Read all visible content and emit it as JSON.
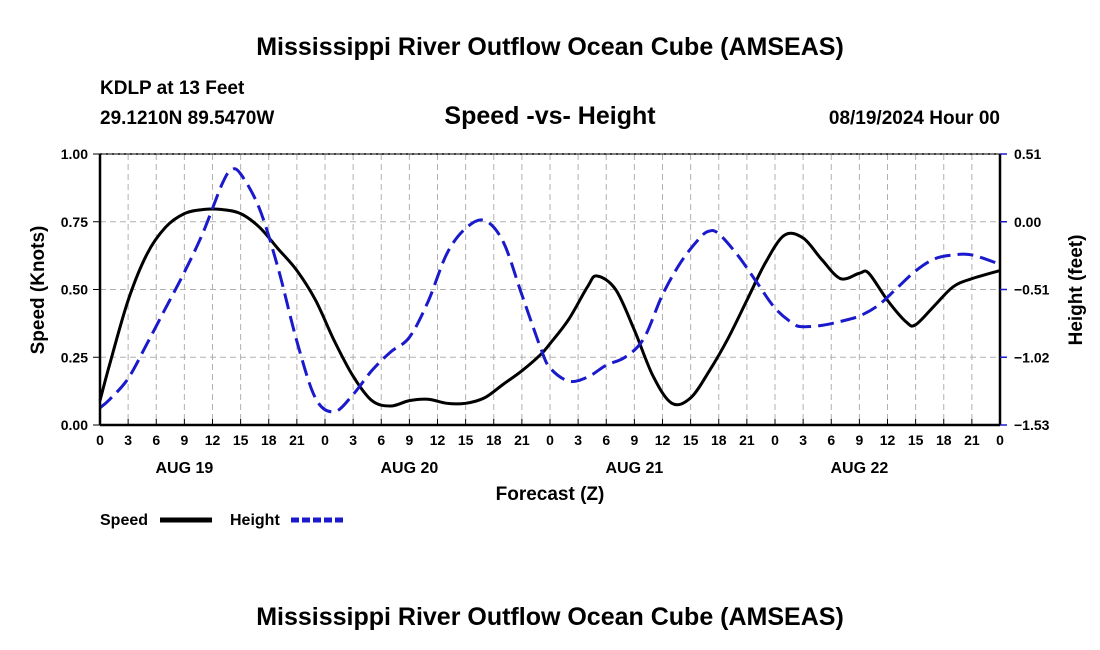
{
  "page": {
    "title": "Mississippi River Outflow Ocean Cube (AMSEAS)",
    "footer_title": "Mississippi River Outflow Ocean Cube (AMSEAS)"
  },
  "station": {
    "name": "KDLP at 13 Feet",
    "coords": "29.1210N  89.5470W",
    "datetime": "08/19/2024 Hour 00"
  },
  "chart_data": {
    "type": "line",
    "title": "Speed -vs- Height",
    "xlabel": "Forecast (Z)",
    "ylabel": "Speed (Knots)",
    "y2label": "Height (feet)",
    "xlim": [
      0,
      96
    ],
    "ylim": [
      0,
      1.0
    ],
    "y2lim": [
      -1.53,
      0.51
    ],
    "grid": true,
    "legend_position": "bottom-left",
    "x_ticks": [
      0,
      3,
      6,
      9,
      12,
      15,
      18,
      21,
      24,
      27,
      30,
      33,
      36,
      39,
      42,
      45,
      48,
      51,
      54,
      57,
      60,
      63,
      66,
      69,
      72,
      75,
      78,
      81,
      84,
      87,
      90,
      93,
      96
    ],
    "x_tick_labels": [
      "0",
      "3",
      "6",
      "9",
      "12",
      "15",
      "18",
      "21",
      "0",
      "3",
      "6",
      "9",
      "12",
      "15",
      "18",
      "21",
      "0",
      "3",
      "6",
      "9",
      "12",
      "15",
      "18",
      "21",
      "0",
      "3",
      "6",
      "9",
      "12",
      "15",
      "18",
      "21",
      "0"
    ],
    "day_labels": [
      {
        "label": "AUG 19",
        "x": 9
      },
      {
        "label": "AUG 20",
        "x": 33
      },
      {
        "label": "AUG 21",
        "x": 57
      },
      {
        "label": "AUG 22",
        "x": 81
      }
    ],
    "y_ticks": [
      0.0,
      0.25,
      0.5,
      0.75,
      1.0
    ],
    "y_tick_labels": [
      "0.00",
      "0.25",
      "0.50",
      "0.75",
      "1.00"
    ],
    "y2_ticks": [
      -1.53,
      -1.02,
      -0.51,
      0.0,
      0.51
    ],
    "y2_tick_labels": [
      "−1.53",
      "−1.02",
      "−0.51",
      "0.00",
      "0.51"
    ],
    "series": [
      {
        "name": "Speed",
        "axis": "left",
        "color": "#000000",
        "dash": "solid",
        "x": [
          0,
          1,
          3,
          5,
          7,
          9,
          11,
          13,
          15,
          17,
          19,
          21,
          23,
          25,
          27,
          29,
          31,
          33,
          35,
          37,
          39,
          41,
          43,
          45,
          47,
          48,
          50,
          52,
          53,
          55,
          57,
          59,
          61,
          63,
          65,
          67,
          69,
          71,
          73,
          75,
          77,
          79,
          81,
          82,
          84,
          86,
          87,
          89,
          91,
          93,
          96
        ],
        "values": [
          0.09,
          0.22,
          0.46,
          0.63,
          0.73,
          0.78,
          0.795,
          0.795,
          0.78,
          0.73,
          0.65,
          0.57,
          0.46,
          0.31,
          0.18,
          0.09,
          0.07,
          0.09,
          0.095,
          0.08,
          0.08,
          0.1,
          0.15,
          0.2,
          0.26,
          0.3,
          0.39,
          0.51,
          0.55,
          0.5,
          0.35,
          0.18,
          0.08,
          0.1,
          0.2,
          0.32,
          0.46,
          0.6,
          0.7,
          0.69,
          0.61,
          0.54,
          0.56,
          0.56,
          0.46,
          0.38,
          0.37,
          0.44,
          0.51,
          0.54,
          0.57
        ]
      },
      {
        "name": "Height",
        "axis": "right",
        "color": "#1a1acc",
        "dash": "dashed",
        "x": [
          0,
          1,
          3,
          5,
          7,
          9,
          11,
          13,
          14,
          15,
          17,
          19,
          21,
          23,
          25,
          27,
          29,
          31,
          33,
          35,
          37,
          39,
          41,
          43,
          45,
          47,
          48,
          50,
          52,
          54,
          56,
          58,
          60,
          62,
          64,
          65,
          66,
          68,
          70,
          72,
          74,
          75,
          77,
          79,
          81,
          83,
          85,
          87,
          89,
          91,
          93,
          96
        ],
        "values": [
          -1.4,
          -1.34,
          -1.18,
          -0.92,
          -0.65,
          -0.38,
          -0.08,
          0.28,
          0.39,
          0.36,
          0.1,
          -0.35,
          -0.9,
          -1.33,
          -1.43,
          -1.3,
          -1.12,
          -0.98,
          -0.87,
          -0.6,
          -0.24,
          -0.05,
          0.01,
          -0.15,
          -0.55,
          -0.95,
          -1.1,
          -1.2,
          -1.17,
          -1.08,
          -1.02,
          -0.88,
          -0.55,
          -0.3,
          -0.12,
          -0.07,
          -0.09,
          -0.25,
          -0.45,
          -0.65,
          -0.77,
          -0.79,
          -0.78,
          -0.75,
          -0.71,
          -0.63,
          -0.5,
          -0.37,
          -0.28,
          -0.25,
          -0.25,
          -0.32
        ]
      }
    ]
  }
}
